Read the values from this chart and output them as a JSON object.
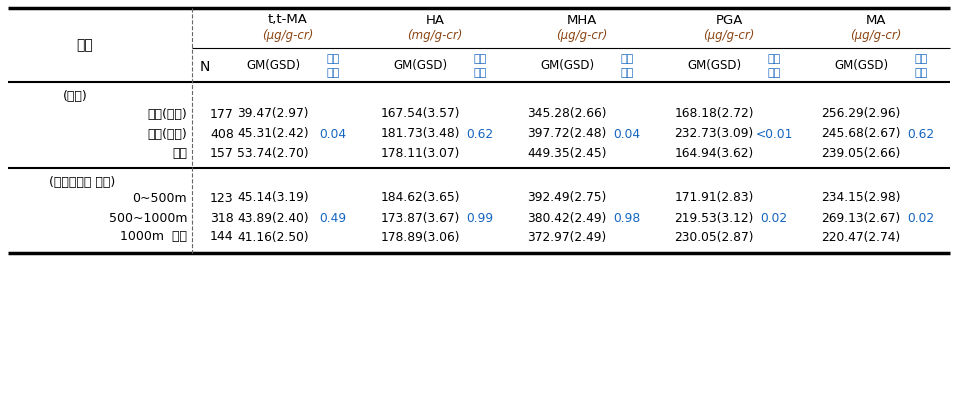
{
  "col_headers": [
    "t,t-MA",
    "HA",
    "MHA",
    "PGA",
    "MA"
  ],
  "col_units": [
    "(μg/g-cr)",
    "(mg/g-cr)",
    "(μg/g-cr)",
    "(μg/g-cr)",
    "(μg/g-cr)"
  ],
  "label_gubn": "구분",
  "label_N": "N",
  "label_gm": "GM(GSD)",
  "label_sig1": "유의",
  "label_sig2": "수준",
  "section1_label": "(지역)",
  "section2_label": "(산단주거지 거리)",
  "rows": [
    {
      "label": "노출(시흥)",
      "n": "177",
      "values": [
        "39.47(2.97)",
        "",
        "167.54(3.57)",
        "",
        "345.28(2.66)",
        "",
        "168.18(2.72)",
        "",
        "256.29(2.96)",
        ""
      ],
      "section": 1
    },
    {
      "label": "노출(안산)",
      "n": "408",
      "values": [
        "45.31(2.42)",
        "0.04",
        "181.73(3.48)",
        "0.62",
        "397.72(2.48)",
        "0.04",
        "232.73(3.09)",
        "<0.01",
        "245.68(2.67)",
        "0.62"
      ],
      "section": 1
    },
    {
      "label": "대조",
      "n": "157",
      "values": [
        "53.74(2.70)",
        "",
        "178.11(3.07)",
        "",
        "449.35(2.45)",
        "",
        "164.94(3.62)",
        "",
        "239.05(2.66)",
        ""
      ],
      "section": 1
    },
    {
      "label": "0~500m",
      "n": "123",
      "values": [
        "45.14(3.19)",
        "",
        "184.62(3.65)",
        "",
        "392.49(2.75)",
        "",
        "171.91(2.83)",
        "",
        "234.15(2.98)",
        ""
      ],
      "section": 2
    },
    {
      "label": "500~1000m",
      "n": "318",
      "values": [
        "43.89(2.40)",
        "0.49",
        "173.87(3.67)",
        "0.99",
        "380.42(2.49)",
        "0.98",
        "219.53(3.12)",
        "0.02",
        "269.13(2.67)",
        "0.02"
      ],
      "section": 2
    },
    {
      "label": "1000m  이상",
      "n": "144",
      "values": [
        "41.16(2.50)",
        "",
        "178.89(3.06)",
        "",
        "372.97(2.49)",
        "",
        "230.05(2.87)",
        "",
        "220.47(2.74)",
        ""
      ],
      "section": 2
    }
  ],
  "bg_color": "white",
  "text_color": "black",
  "sig_color": "#1565C0",
  "unit_color": "#8B4513",
  "border_color": "black"
}
